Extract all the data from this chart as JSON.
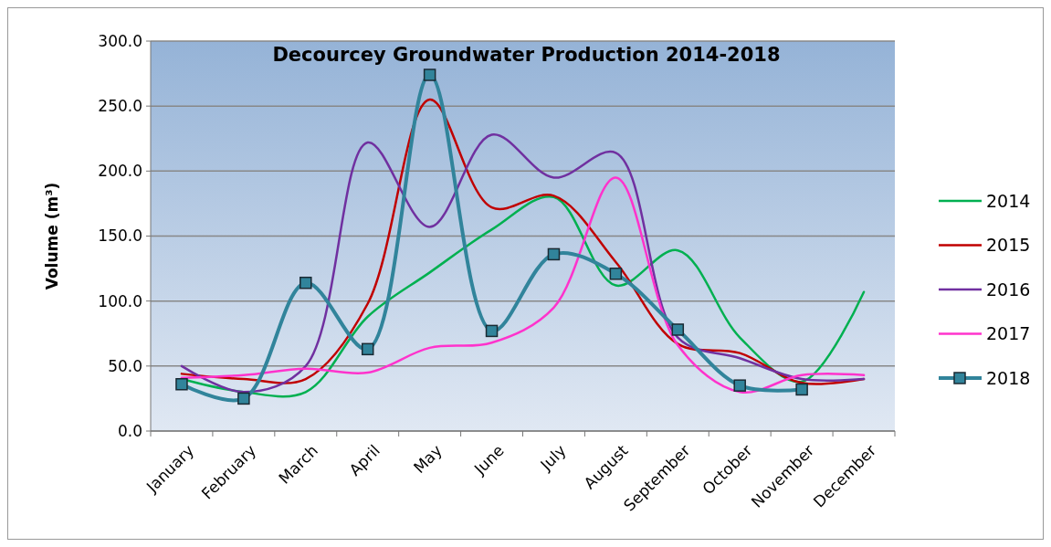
{
  "chart_data": {
    "type": "line",
    "title": "Decourcey Groundwater Production 2014-2018",
    "ylabel": "Volume (m³)",
    "categories": [
      "January",
      "February",
      "March",
      "April",
      "May",
      "June",
      "July",
      "August",
      "September",
      "October",
      "November",
      "December"
    ],
    "series": [
      {
        "name": "2014",
        "color": "#00b050",
        "values": [
          40,
          30,
          30,
          88,
          122,
          155,
          180,
          112,
          139,
          72,
          38,
          107
        ]
      },
      {
        "name": "2015",
        "color": "#c00000",
        "values": [
          44,
          40,
          40,
          98,
          255,
          172,
          181,
          130,
          67,
          60,
          37,
          40
        ]
      },
      {
        "name": "2016",
        "color": "#7030a0",
        "values": [
          50,
          30,
          50,
          222,
          157,
          228,
          195,
          214,
          72,
          56,
          40,
          40
        ]
      },
      {
        "name": "2017",
        "color": "#ff33cc",
        "values": [
          41,
          43,
          48,
          45,
          64,
          68,
          95,
          195,
          66,
          30,
          43,
          43
        ]
      },
      {
        "name": "2018",
        "color": "#31849b",
        "marker": "square",
        "values": [
          36,
          25,
          114,
          63,
          274,
          77,
          136,
          121,
          78,
          35,
          32,
          null
        ]
      }
    ],
    "ylim": [
      0,
      300
    ],
    "yticks": [
      {
        "value": 0,
        "label": "0.0"
      },
      {
        "value": 50,
        "label": "50.0"
      },
      {
        "value": 100,
        "label": "100.0"
      },
      {
        "value": 150,
        "label": "150.0"
      },
      {
        "value": 200,
        "label": "200.0"
      },
      {
        "value": 250,
        "label": "250.0"
      },
      {
        "value": 300,
        "label": "300.0"
      }
    ],
    "grid": "y",
    "legend": "right"
  }
}
